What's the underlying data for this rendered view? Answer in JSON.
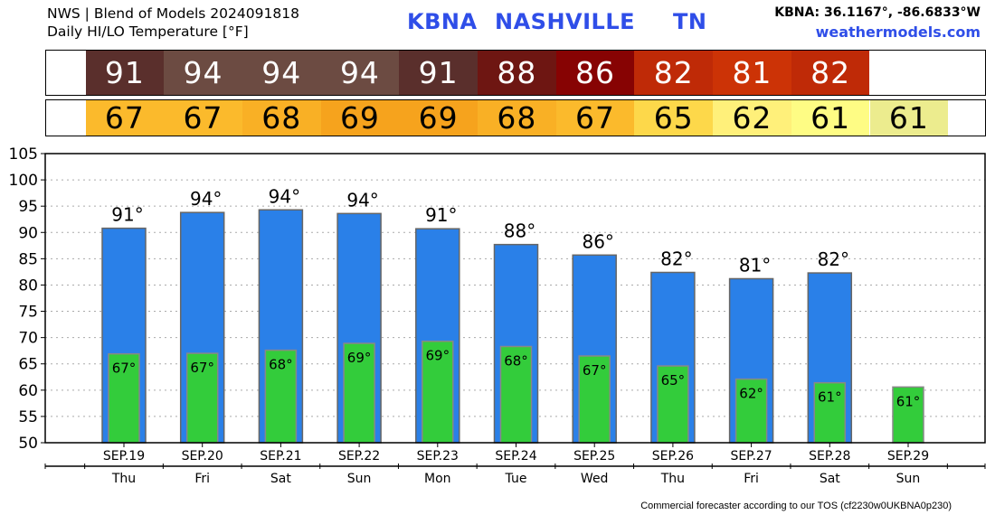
{
  "header": {
    "line1": "NWS | Blend of Models 2024091818",
    "line2": "Daily HI/LO Temperature [°F]",
    "station_id": "KBNA",
    "station_name": "NASHVILLE",
    "station_state": "TN",
    "coords": "KBNA: 36.1167°, -86.6833°W",
    "site": "weathermodels.com"
  },
  "strips": {
    "hi": [
      {
        "value": "91",
        "color": "#5a2f2c",
        "text_color": "#ffffff"
      },
      {
        "value": "94",
        "color": "#6c4b42",
        "text_color": "#ffffff"
      },
      {
        "value": "94",
        "color": "#6c4b42",
        "text_color": "#ffffff"
      },
      {
        "value": "94",
        "color": "#6c4b42",
        "text_color": "#ffffff"
      },
      {
        "value": "91",
        "color": "#5a2f2c",
        "text_color": "#ffffff"
      },
      {
        "value": "88",
        "color": "#6e1612",
        "text_color": "#ffffff"
      },
      {
        "value": "86",
        "color": "#870303",
        "text_color": "#ffffff"
      },
      {
        "value": "82",
        "color": "#bf2a07",
        "text_color": "#ffffff"
      },
      {
        "value": "81",
        "color": "#cc3306",
        "text_color": "#ffffff"
      },
      {
        "value": "82",
        "color": "#bf2a07",
        "text_color": "#ffffff"
      }
    ],
    "lo": [
      {
        "value": "67",
        "color": "#fbba2c",
        "text_color": "#000000"
      },
      {
        "value": "67",
        "color": "#fbba2c",
        "text_color": "#000000"
      },
      {
        "value": "68",
        "color": "#f9b025",
        "text_color": "#000000"
      },
      {
        "value": "69",
        "color": "#f6a31d",
        "text_color": "#000000"
      },
      {
        "value": "69",
        "color": "#f6a31d",
        "text_color": "#000000"
      },
      {
        "value": "68",
        "color": "#f9b025",
        "text_color": "#000000"
      },
      {
        "value": "67",
        "color": "#fbba2c",
        "text_color": "#000000"
      },
      {
        "value": "65",
        "color": "#fdd84a",
        "text_color": "#000000"
      },
      {
        "value": "62",
        "color": "#fff07a",
        "text_color": "#000000"
      },
      {
        "value": "61",
        "color": "#fefc84",
        "text_color": "#000000"
      },
      {
        "value": "61",
        "color": "#ecec8e",
        "text_color": "#000000"
      }
    ]
  },
  "chart_data": {
    "type": "bar",
    "categories": [
      "SEP.19",
      "SEP.20",
      "SEP.21",
      "SEP.22",
      "SEP.23",
      "SEP.24",
      "SEP.25",
      "SEP.26",
      "SEP.27",
      "SEP.28",
      "SEP.29"
    ],
    "weekdays": [
      "Thu",
      "Fri",
      "Sat",
      "Sun",
      "Mon",
      "Tue",
      "Wed",
      "Thu",
      "Fri",
      "Sat",
      "Sun"
    ],
    "series": [
      {
        "values": [
          90.8,
          93.8,
          94.3,
          93.6,
          90.7,
          87.7,
          85.7,
          82.4,
          81.2,
          82.3,
          null
        ],
        "labels": [
          "91°",
          "94°",
          "94°",
          "94°",
          "91°",
          "88°",
          "86°",
          "82°",
          "81°",
          "82°",
          ""
        ],
        "color": "#2a80e8"
      },
      {
        "values": [
          66.9,
          67.0,
          67.6,
          68.9,
          69.3,
          68.3,
          66.5,
          64.6,
          62.1,
          61.4,
          60.6
        ],
        "labels": [
          "67°",
          "67°",
          "68°",
          "69°",
          "69°",
          "68°",
          "67°",
          "65°",
          "62°",
          "61°",
          "61°"
        ],
        "color": "#33cc3b"
      }
    ],
    "xlabel": "",
    "ylabel": "",
    "ylim": [
      50,
      105
    ],
    "yticks": [
      50,
      55,
      60,
      65,
      70,
      75,
      80,
      85,
      90,
      95,
      100,
      105
    ],
    "grid": true
  },
  "footer": "Commercial forecaster according to our TOS (cf2230w0UKBNA0p230)"
}
